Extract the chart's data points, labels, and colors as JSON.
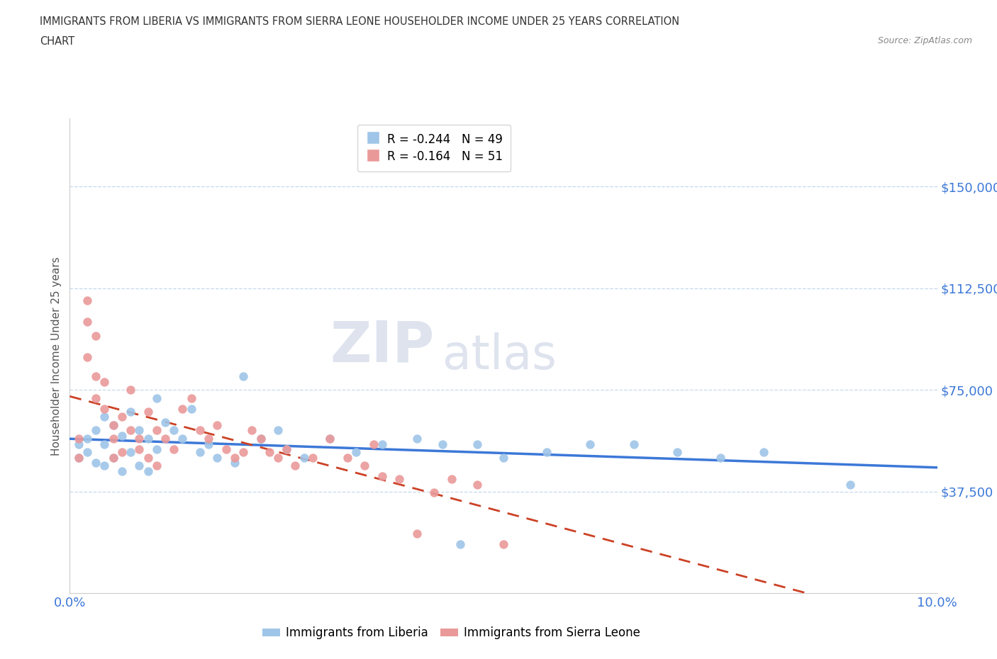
{
  "title_line1": "IMMIGRANTS FROM LIBERIA VS IMMIGRANTS FROM SIERRA LEONE HOUSEHOLDER INCOME UNDER 25 YEARS CORRELATION",
  "title_line2": "CHART",
  "source_text": "Source: ZipAtlas.com",
  "ylabel": "Householder Income Under 25 years",
  "xlim": [
    0.0,
    0.1
  ],
  "ylim": [
    0,
    175000
  ],
  "yticks": [
    0,
    37500,
    75000,
    112500,
    150000
  ],
  "ytick_labels": [
    "",
    "$37,500",
    "$75,000",
    "$112,500",
    "$150,000"
  ],
  "xticks": [
    0.0,
    0.02,
    0.04,
    0.06,
    0.08,
    0.1
  ],
  "xtick_labels": [
    "0.0%",
    "",
    "",
    "",
    "",
    "10.0%"
  ],
  "watermark_zip": "ZIP",
  "watermark_atlas": "atlas",
  "liberia_R": -0.244,
  "liberia_N": 49,
  "sierraleone_R": -0.164,
  "sierraleone_N": 51,
  "liberia_color": "#9fc5e8",
  "sierraleone_color": "#ea9999",
  "trend_liberia_color": "#3c78d8",
  "trend_sierraleone_color": "#cc4125",
  "liberia_x": [
    0.001,
    0.001,
    0.002,
    0.002,
    0.003,
    0.003,
    0.004,
    0.004,
    0.004,
    0.005,
    0.005,
    0.006,
    0.006,
    0.007,
    0.007,
    0.008,
    0.008,
    0.009,
    0.009,
    0.01,
    0.01,
    0.011,
    0.012,
    0.013,
    0.014,
    0.015,
    0.016,
    0.017,
    0.019,
    0.02,
    0.022,
    0.024,
    0.025,
    0.027,
    0.03,
    0.033,
    0.036,
    0.04,
    0.043,
    0.047,
    0.05,
    0.055,
    0.06,
    0.065,
    0.07,
    0.075,
    0.08,
    0.09,
    0.045
  ],
  "liberia_y": [
    55000,
    50000,
    57000,
    52000,
    60000,
    48000,
    65000,
    55000,
    47000,
    62000,
    50000,
    58000,
    45000,
    67000,
    52000,
    60000,
    47000,
    57000,
    45000,
    72000,
    53000,
    63000,
    60000,
    57000,
    68000,
    52000,
    55000,
    50000,
    48000,
    80000,
    57000,
    60000,
    53000,
    50000,
    57000,
    52000,
    55000,
    57000,
    55000,
    55000,
    50000,
    52000,
    55000,
    55000,
    52000,
    50000,
    52000,
    40000,
    18000
  ],
  "sierraleone_x": [
    0.001,
    0.001,
    0.002,
    0.002,
    0.003,
    0.003,
    0.004,
    0.004,
    0.005,
    0.005,
    0.005,
    0.006,
    0.006,
    0.007,
    0.007,
    0.008,
    0.008,
    0.009,
    0.009,
    0.01,
    0.01,
    0.011,
    0.012,
    0.013,
    0.014,
    0.015,
    0.016,
    0.017,
    0.018,
    0.019,
    0.02,
    0.021,
    0.022,
    0.023,
    0.024,
    0.025,
    0.026,
    0.028,
    0.03,
    0.032,
    0.034,
    0.036,
    0.038,
    0.04,
    0.042,
    0.044,
    0.047,
    0.05,
    0.003,
    0.002,
    0.035
  ],
  "sierraleone_y": [
    57000,
    50000,
    100000,
    87000,
    80000,
    72000,
    68000,
    78000,
    62000,
    57000,
    50000,
    65000,
    52000,
    75000,
    60000,
    57000,
    53000,
    67000,
    50000,
    60000,
    47000,
    57000,
    53000,
    68000,
    72000,
    60000,
    57000,
    62000,
    53000,
    50000,
    52000,
    60000,
    57000,
    52000,
    50000,
    53000,
    47000,
    50000,
    57000,
    50000,
    47000,
    43000,
    42000,
    22000,
    37000,
    42000,
    40000,
    18000,
    95000,
    108000,
    55000
  ]
}
